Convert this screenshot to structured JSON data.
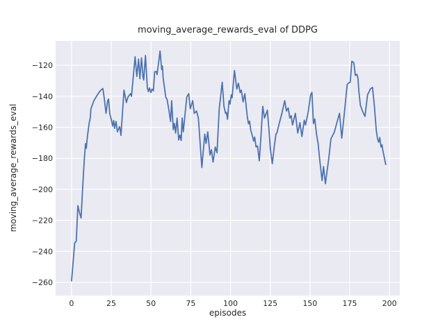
{
  "chart_data": {
    "type": "line",
    "title": "moving_average_rewards_eval of DDPG",
    "xlabel": "episodes",
    "ylabel": "moving_average_rewards_eval",
    "x_ticks": [
      0,
      25,
      50,
      75,
      100,
      125,
      150,
      175,
      200
    ],
    "y_ticks": [
      -120,
      -140,
      -160,
      -180,
      -200,
      -220,
      -240,
      -260
    ],
    "xlim": [
      -10,
      206.5
    ],
    "ylim": [
      -268.5,
      -104.3
    ],
    "grid": true,
    "legend": "none",
    "colors": {
      "axes_background": "#eaeaf2",
      "grid": "#ffffff",
      "line": "#4c72b0",
      "text": "#262626",
      "figure_background": "#ffffff"
    },
    "series": [
      {
        "name": "moving_average_rewards_eval",
        "x": [
          0,
          1,
          2,
          3,
          4,
          5,
          6,
          7,
          8,
          8.8,
          9.3,
          10,
          11,
          11.8,
          12.2,
          14,
          16,
          18,
          19.7,
          20.5,
          21.7,
          22.7,
          23.3,
          24.1,
          25,
          25.8,
          26.5,
          27.1,
          28,
          28.9,
          30.3,
          31.1,
          33,
          34.5,
          35.5,
          37.1,
          37.7,
          40,
          41.1,
          42.2,
          43,
          44,
          45,
          45.4,
          46.5,
          47.7,
          48.4,
          49,
          49.9,
          50.6,
          51.5,
          52.3,
          53.3,
          53.8,
          55.7,
          56.7,
          57.2,
          57.6,
          59.3,
          60.1,
          61.1,
          62.3,
          63,
          64,
          64.7,
          65.5,
          66.4,
          67.4,
          68.2,
          69,
          69.6,
          70.3,
          72.5,
          73.7,
          74.7,
          76.2,
          77.2,
          78.6,
          79.8,
          82,
          83.8,
          84.6,
          85.7,
          87.1,
          88,
          89,
          90.4,
          91.5,
          92.9,
          94.8,
          95.9,
          96.9,
          97.4,
          98.1,
          99.1,
          99.7,
          100.5,
          101,
          102.5,
          104,
          105,
          106.1,
          106.8,
          107.9,
          109,
          110.5,
          111.3,
          112,
          112.7,
          114.6,
          115.2,
          116.1,
          117,
          118.1,
          119.2,
          120.3,
          121.4,
          123.2,
          124.3,
          125,
          126.3,
          127.6,
          128.6,
          129.2,
          130.8,
          132.3,
          134.1,
          135.2,
          136.3,
          137.3,
          138.2,
          139,
          140.8,
          142.3,
          143.7,
          144.9,
          146.4,
          147.2,
          149,
          150.4,
          151.2,
          152.2,
          153,
          154.1,
          155.1,
          156.1,
          157.6,
          158.5,
          159.7,
          161.7,
          163.2,
          165.4,
          166.9,
          168.6,
          170,
          171.9,
          173.4,
          174.5,
          175.3,
          176.3,
          177.6,
          178.5,
          179.5,
          180.2,
          180.7,
          181.7,
          183,
          184.6,
          186.2,
          188,
          189.3,
          190.5,
          191.7,
          192.5,
          193.2,
          193.9,
          194.7,
          195.3,
          195.7,
          197.6
        ],
        "y": [
          -259,
          -247,
          -234.5,
          -233.5,
          -210.5,
          -215,
          -218.5,
          -199,
          -181,
          -170.5,
          -173.5,
          -166,
          -158,
          -154,
          -148,
          -143,
          -139.5,
          -136.5,
          -135,
          -140.5,
          -151,
          -142.8,
          -141.8,
          -151.5,
          -154.8,
          -159.2,
          -155.6,
          -160.7,
          -156.2,
          -162.9,
          -159.5,
          -165.2,
          -136,
          -144,
          -140.5,
          -138.3,
          -140,
          -114.5,
          -127.2,
          -116,
          -128.7,
          -115.2,
          -128,
          -129.5,
          -113.7,
          -134.6,
          -137,
          -134.6,
          -137.6,
          -135.3,
          -136.5,
          -124.2,
          -124,
          -126,
          -110.8,
          -122.7,
          -120.5,
          -128,
          -140.6,
          -142,
          -148,
          -156.2,
          -142.8,
          -161.5,
          -157.5,
          -163.7,
          -154,
          -168.2,
          -165,
          -168.5,
          -154,
          -162.9,
          -140.6,
          -138.3,
          -148,
          -142.8,
          -151,
          -149.5,
          -154,
          -186,
          -164.4,
          -170.4,
          -162.9,
          -177.9,
          -174.5,
          -182.4,
          -172.7,
          -176.4,
          -148,
          -130.9,
          -146.5,
          -151,
          -150.3,
          -154.8,
          -142.8,
          -145,
          -139,
          -141,
          -123.4,
          -135.3,
          -131.6,
          -137.6,
          -136,
          -143.6,
          -138.3,
          -152.5,
          -157.7,
          -156,
          -161.5,
          -168.9,
          -166.3,
          -172.7,
          -172,
          -181.6,
          -165.2,
          -146.5,
          -154,
          -149,
          -162.9,
          -173.4,
          -183.5,
          -171.9,
          -164.4,
          -163.5,
          -157,
          -151,
          -142.8,
          -149.5,
          -147.5,
          -154,
          -152.5,
          -158.5,
          -151,
          -163.7,
          -157,
          -165.9,
          -155.4,
          -158.5,
          -149.5,
          -139.1,
          -137.5,
          -157.6,
          -154.6,
          -164.4,
          -170.4,
          -180.9,
          -194.3,
          -185.3,
          -196.4,
          -180.9,
          -167.4,
          -162.9,
          -157,
          -151,
          -167,
          -148,
          -132.4,
          -131.3,
          -130.9,
          -117.4,
          -118.3,
          -126.5,
          -125.8,
          -128.6,
          -136.1,
          -145.8,
          -149.5,
          -153,
          -139,
          -135.3,
          -134.2,
          -146,
          -162.2,
          -167.4,
          -169.6,
          -166.6,
          -172.7,
          -171.3,
          -174.2,
          -184
        ]
      }
    ]
  }
}
